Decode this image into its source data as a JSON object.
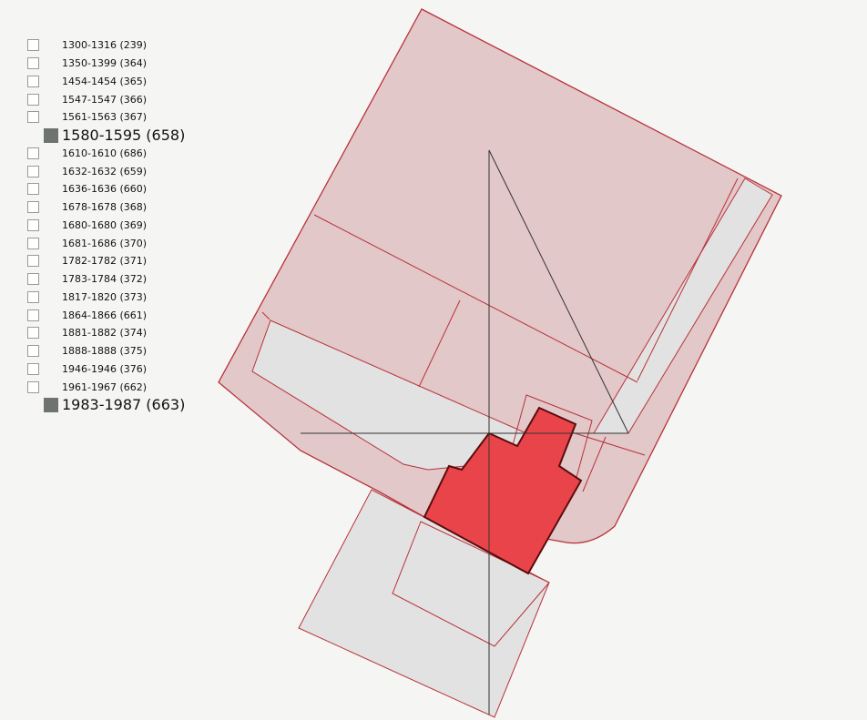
{
  "legend": [
    {
      "label": "1300-1316 (239)",
      "checked": false
    },
    {
      "label": "1350-1399 (364)",
      "checked": false
    },
    {
      "label": "1454-1454 (365)",
      "checked": false
    },
    {
      "label": "1547-1547 (366)",
      "checked": false
    },
    {
      "label": "1561-1563 (367)",
      "checked": false
    },
    {
      "label": "1580-1595 (658)",
      "checked": true
    },
    {
      "label": "1610-1610 (686)",
      "checked": false
    },
    {
      "label": "1632-1632 (659)",
      "checked": false
    },
    {
      "label": "1636-1636 (660)",
      "checked": false
    },
    {
      "label": "1678-1678 (368)",
      "checked": false
    },
    {
      "label": "1680-1680 (369)",
      "checked": false
    },
    {
      "label": "1681-1686 (370)",
      "checked": false
    },
    {
      "label": "1782-1782 (371)",
      "checked": false
    },
    {
      "label": "1783-1784 (372)",
      "checked": false
    },
    {
      "label": "1817-1820 (373)",
      "checked": false
    },
    {
      "label": "1864-1866 (661)",
      "checked": false
    },
    {
      "label": "1881-1882 (374)",
      "checked": false
    },
    {
      "label": "1888-1888 (375)",
      "checked": false
    },
    {
      "label": "1946-1946 (376)",
      "checked": false
    },
    {
      "label": "1961-1967 (662)",
      "checked": false
    },
    {
      "label": "1983-1987 (663)",
      "checked": true
    }
  ],
  "colors": {
    "parcel_fill": "#e2c8c9",
    "parcel_stroke": "#b8323a",
    "void_fill": "#e2e2e2",
    "highlight_fill": "#e8444a",
    "highlight_stroke": "#5a0c0c",
    "axis": "#333333",
    "swatch": "#6f736f"
  }
}
